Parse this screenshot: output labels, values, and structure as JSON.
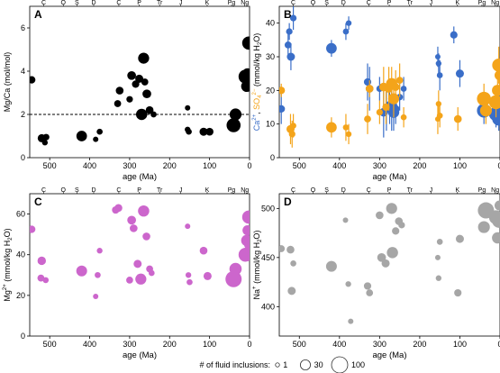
{
  "chart_data": [
    {
      "panel": "A",
      "type": "scatter",
      "xlabel": "age (Ma)",
      "ylabel": "Mg/Ca (mol/mol)",
      "xlim": [
        550,
        0
      ],
      "ylim": [
        0,
        7
      ],
      "xticks": [
        500,
        400,
        300,
        200,
        100,
        0
      ],
      "yticks": [
        0,
        2,
        4,
        6
      ],
      "reference_line": 2,
      "period_labels": [
        "C",
        "O",
        "S",
        "D",
        "C",
        "P",
        "Tr",
        "J",
        "K",
        "Pg",
        "Ng"
      ],
      "marker_color": "#000000",
      "points": [
        {
          "x": 545,
          "y": 3.6,
          "n": 12
        },
        {
          "x": 520,
          "y": 0.9,
          "n": 16
        },
        {
          "x": 512,
          "y": 0.7,
          "n": 5
        },
        {
          "x": 509,
          "y": 0.95,
          "n": 8
        },
        {
          "x": 420,
          "y": 1.0,
          "n": 34
        },
        {
          "x": 385,
          "y": 0.85,
          "n": 4
        },
        {
          "x": 375,
          "y": 1.2,
          "n": 6
        },
        {
          "x": 330,
          "y": 2.5,
          "n": 10
        },
        {
          "x": 325,
          "y": 3.1,
          "n": 14
        },
        {
          "x": 300,
          "y": 2.7,
          "n": 8
        },
        {
          "x": 295,
          "y": 3.8,
          "n": 20
        },
        {
          "x": 285,
          "y": 3.4,
          "n": 12
        },
        {
          "x": 276,
          "y": 3.65,
          "n": 16
        },
        {
          "x": 270,
          "y": 2.0,
          "n": 40
        },
        {
          "x": 265,
          "y": 4.6,
          "n": 38
        },
        {
          "x": 262,
          "y": 3.5,
          "n": 10
        },
        {
          "x": 257,
          "y": 2.95,
          "n": 20
        },
        {
          "x": 250,
          "y": 2.2,
          "n": 14
        },
        {
          "x": 240,
          "y": 2.0,
          "n": 6
        },
        {
          "x": 155,
          "y": 2.3,
          "n": 4
        },
        {
          "x": 155,
          "y": 1.3,
          "n": 5
        },
        {
          "x": 152,
          "y": 1.2,
          "n": 6
        },
        {
          "x": 115,
          "y": 1.2,
          "n": 16
        },
        {
          "x": 100,
          "y": 1.2,
          "n": 14
        },
        {
          "x": 40,
          "y": 1.5,
          "n": 70
        },
        {
          "x": 35,
          "y": 2.0,
          "n": 46
        },
        {
          "x": 10,
          "y": 3.75,
          "n": 70
        },
        {
          "x": 7,
          "y": 3.3,
          "n": 40
        },
        {
          "x": 5,
          "y": 3.9,
          "n": 30
        },
        {
          "x": 2,
          "y": 5.3,
          "n": 60
        }
      ]
    },
    {
      "panel": "B",
      "type": "scatter",
      "xlabel": "age (Ma)",
      "ylabel": "Ca2+, SO42- (mmol/kg H2O)",
      "ylabel_parts": {
        "ca": "Ca",
        "ca_sup": "2+",
        "comma": ",",
        "so": "SO",
        "so_sub": "4",
        "so_sup": "2−",
        "unit": "(mmol/kg H",
        "unit_sub": "2",
        "unit_end": "O)"
      },
      "xlim": [
        550,
        0
      ],
      "ylim": [
        0,
        45
      ],
      "xticks": [
        500,
        400,
        300,
        200,
        100,
        0
      ],
      "yticks": [
        0,
        10,
        20,
        30,
        40
      ],
      "period_labels": [
        "C",
        "O",
        "S",
        "D",
        "C",
        "P",
        "Tr",
        "J",
        "K",
        "Pg",
        "Ng"
      ],
      "series": [
        {
          "name": "Ca2+",
          "color": "#3a6ec8",
          "points": [
            {
              "x": 545,
              "y": 14.5,
              "lo": 10.0,
              "hi": 19.0,
              "n": 12
            },
            {
              "x": 528,
              "y": 33.5,
              "lo": 30.0,
              "hi": 37.0,
              "n": 10
            },
            {
              "x": 525,
              "y": 37.5,
              "lo": 35.0,
              "hi": 40.0,
              "n": 8
            },
            {
              "x": 521,
              "y": 30.0,
              "lo": 26.0,
              "hi": 34.0,
              "n": 16
            },
            {
              "x": 515,
              "y": 41.5,
              "lo": 38.0,
              "hi": 45.0,
              "n": 8
            },
            {
              "x": 420,
              "y": 32.5,
              "lo": 30.0,
              "hi": 35.0,
              "n": 34
            },
            {
              "x": 384,
              "y": 37.5,
              "lo": 35.0,
              "hi": 40.0,
              "n": 6
            },
            {
              "x": 377,
              "y": 40.0,
              "lo": 38.0,
              "hi": 42.0,
              "n": 5
            },
            {
              "x": 330,
              "y": 22.5,
              "lo": 17.0,
              "hi": 28.0,
              "n": 12
            },
            {
              "x": 325,
              "y": 20.5,
              "lo": 14.0,
              "hi": 27.0,
              "n": 14
            },
            {
              "x": 300,
              "y": 20.5,
              "lo": 17.0,
              "hi": 24.0,
              "n": 8
            },
            {
              "x": 290,
              "y": 13.5,
              "lo": 6.0,
              "hi": 21.0,
              "n": 20
            },
            {
              "x": 283,
              "y": 14.5,
              "lo": 8.0,
              "hi": 21.0,
              "n": 14
            },
            {
              "x": 275,
              "y": 15.5,
              "lo": 10.0,
              "hi": 21.0,
              "n": 20
            },
            {
              "x": 270,
              "y": 15.5,
              "lo": 8.0,
              "hi": 23.0,
              "n": 38
            },
            {
              "x": 265,
              "y": 13.5,
              "lo": 8.0,
              "hi": 19.0,
              "n": 40
            },
            {
              "x": 260,
              "y": 14.5,
              "lo": 10.0,
              "hi": 19.0,
              "n": 14
            },
            {
              "x": 250,
              "y": 18.0,
              "lo": 14.0,
              "hi": 22.0,
              "n": 8
            },
            {
              "x": 240,
              "y": 20.5,
              "lo": 17.0,
              "hi": 24.0,
              "n": 6
            },
            {
              "x": 155,
              "y": 30.0,
              "lo": 27.0,
              "hi": 33.0,
              "n": 4
            },
            {
              "x": 153,
              "y": 28.0,
              "lo": 25.0,
              "hi": 31.0,
              "n": 5
            },
            {
              "x": 150,
              "y": 24.5,
              "lo": 20.0,
              "hi": 29.0,
              "n": 6
            },
            {
              "x": 115,
              "y": 36.5,
              "lo": 34.0,
              "hi": 39.0,
              "n": 12
            },
            {
              "x": 100,
              "y": 25.0,
              "lo": 21.0,
              "hi": 29.0,
              "n": 16
            },
            {
              "x": 40,
              "y": 14.0,
              "lo": 10.0,
              "hi": 18.0,
              "n": 70
            },
            {
              "x": 10,
              "y": 13.0,
              "lo": 9.0,
              "hi": 17.0,
              "n": 70
            },
            {
              "x": 6,
              "y": 17.0,
              "lo": 13.0,
              "hi": 21.0,
              "n": 40
            },
            {
              "x": 3,
              "y": 11.5,
              "lo": 8.0,
              "hi": 15.0,
              "n": 60
            },
            {
              "x": 1,
              "y": 14.0,
              "lo": 10.0,
              "hi": 18.0,
              "n": 30
            }
          ]
        },
        {
          "name": "SO42-",
          "color": "#f4a41a",
          "points": [
            {
              "x": 545,
              "y": 20.0,
              "lo": 18.0,
              "hi": 22.0,
              "n": 12
            },
            {
              "x": 522,
              "y": 8.5,
              "lo": 4.0,
              "hi": 13.0,
              "n": 16
            },
            {
              "x": 518,
              "y": 7.0,
              "lo": 3.0,
              "hi": 11.0,
              "n": 8
            },
            {
              "x": 515,
              "y": 9.5,
              "lo": 6.0,
              "hi": 13.0,
              "n": 6
            },
            {
              "x": 420,
              "y": 9.0,
              "lo": 6.0,
              "hi": 12.0,
              "n": 34
            },
            {
              "x": 384,
              "y": 9.0,
              "lo": 5.0,
              "hi": 13.0,
              "n": 6
            },
            {
              "x": 377,
              "y": 7.0,
              "lo": 4.0,
              "hi": 10.0,
              "n": 5
            },
            {
              "x": 330,
              "y": 11.5,
              "lo": 7.0,
              "hi": 16.0,
              "n": 10
            },
            {
              "x": 325,
              "y": 20.5,
              "lo": 18.0,
              "hi": 23.0,
              "n": 14
            },
            {
              "x": 300,
              "y": 13.5,
              "lo": 10.0,
              "hi": 17.0,
              "n": 8
            },
            {
              "x": 290,
              "y": 21.0,
              "lo": 15.0,
              "hi": 27.0,
              "n": 20
            },
            {
              "x": 284,
              "y": 15.0,
              "lo": 10.0,
              "hi": 20.0,
              "n": 12
            },
            {
              "x": 277,
              "y": 20.5,
              "lo": 14.0,
              "hi": 27.0,
              "n": 16
            },
            {
              "x": 270,
              "y": 22.0,
              "lo": 17.0,
              "hi": 27.0,
              "n": 40
            },
            {
              "x": 265,
              "y": 17.5,
              "lo": 12.0,
              "hi": 23.0,
              "n": 38
            },
            {
              "x": 260,
              "y": 21.0,
              "lo": 16.0,
              "hi": 26.0,
              "n": 14
            },
            {
              "x": 250,
              "y": 23.0,
              "lo": 18.0,
              "hi": 28.0,
              "n": 10
            },
            {
              "x": 240,
              "y": 12.0,
              "lo": 9.0,
              "hi": 15.0,
              "n": 6
            },
            {
              "x": 155,
              "y": 11.5,
              "lo": 7.0,
              "hi": 16.0,
              "n": 4
            },
            {
              "x": 153,
              "y": 16.0,
              "lo": 12.0,
              "hi": 20.0,
              "n": 5
            },
            {
              "x": 150,
              "y": 12.5,
              "lo": 9.0,
              "hi": 16.0,
              "n": 6
            },
            {
              "x": 105,
              "y": 11.5,
              "lo": 8.0,
              "hi": 15.0,
              "n": 14
            },
            {
              "x": 40,
              "y": 17.5,
              "lo": 13.0,
              "hi": 22.0,
              "n": 70
            },
            {
              "x": 35,
              "y": 14.0,
              "lo": 10.0,
              "hi": 18.0,
              "n": 46
            },
            {
              "x": 10,
              "y": 16.5,
              "lo": 12.0,
              "hi": 21.0,
              "n": 70
            },
            {
              "x": 6,
              "y": 20.0,
              "lo": 15.0,
              "hi": 25.0,
              "n": 40
            },
            {
              "x": 3,
              "y": 27.5,
              "lo": 22.0,
              "hi": 33.0,
              "n": 60
            },
            {
              "x": 1,
              "y": 24.5,
              "lo": 20.0,
              "hi": 29.0,
              "n": 30
            }
          ]
        }
      ]
    },
    {
      "panel": "C",
      "type": "scatter",
      "xlabel": "age (Ma)",
      "ylabel": "Mg2+ (mmol/kg H2O)",
      "ylabel_parts": {
        "base": "Mg",
        "sup": "2+",
        "unit": "(mmol/kg H",
        "unit_sub": "2",
        "unit_end": "O)"
      },
      "xlim": [
        550,
        0
      ],
      "ylim": [
        0,
        70
      ],
      "xticks": [
        500,
        400,
        300,
        200,
        100,
        0
      ],
      "yticks": [
        0,
        20,
        40,
        60
      ],
      "period_labels": [
        "C",
        "O",
        "S",
        "D",
        "C",
        "P",
        "Tr",
        "J",
        "K",
        "Pg",
        "Ng"
      ],
      "marker_color": "#cc66cc",
      "points": [
        {
          "x": 545,
          "y": 52.5,
          "n": 12
        },
        {
          "x": 520,
          "y": 37.0,
          "n": 18
        },
        {
          "x": 522,
          "y": 28.5,
          "n": 10
        },
        {
          "x": 510,
          "y": 27.5,
          "n": 6
        },
        {
          "x": 420,
          "y": 32.0,
          "n": 36
        },
        {
          "x": 385,
          "y": 19.5,
          "n": 4
        },
        {
          "x": 380,
          "y": 30.0,
          "n": 6
        },
        {
          "x": 375,
          "y": 42.0,
          "n": 5
        },
        {
          "x": 335,
          "y": 62.0,
          "n": 12
        },
        {
          "x": 328,
          "y": 63.0,
          "n": 14
        },
        {
          "x": 300,
          "y": 27.5,
          "n": 10
        },
        {
          "x": 295,
          "y": 57.0,
          "n": 20
        },
        {
          "x": 290,
          "y": 53.0,
          "n": 14
        },
        {
          "x": 280,
          "y": 35.5,
          "n": 16
        },
        {
          "x": 272,
          "y": 28.0,
          "n": 38
        },
        {
          "x": 265,
          "y": 61.5,
          "n": 40
        },
        {
          "x": 258,
          "y": 49.0,
          "n": 14
        },
        {
          "x": 250,
          "y": 33.0,
          "n": 10
        },
        {
          "x": 245,
          "y": 31.0,
          "n": 6
        },
        {
          "x": 155,
          "y": 54.0,
          "n": 4
        },
        {
          "x": 153,
          "y": 30.0,
          "n": 5
        },
        {
          "x": 150,
          "y": 26.5,
          "n": 6
        },
        {
          "x": 115,
          "y": 42.0,
          "n": 14
        },
        {
          "x": 105,
          "y": 29.5,
          "n": 16
        },
        {
          "x": 40,
          "y": 28.0,
          "n": 100
        },
        {
          "x": 35,
          "y": 33.0,
          "n": 50
        },
        {
          "x": 10,
          "y": 40.0,
          "n": 70
        },
        {
          "x": 7,
          "y": 47.0,
          "n": 40
        },
        {
          "x": 5,
          "y": 52.0,
          "n": 30
        },
        {
          "x": 2,
          "y": 58.5,
          "n": 60
        },
        {
          "x": 1,
          "y": 45.0,
          "n": 30
        }
      ]
    },
    {
      "panel": "D",
      "type": "scatter",
      "xlabel": "age (Ma)",
      "ylabel": "Na+ (mmol/kg H2O)",
      "ylabel_parts": {
        "base": "Na",
        "sup": "+",
        "unit": "(mmol/kg H",
        "unit_sub": "2",
        "unit_end": "O)"
      },
      "xlim": [
        550,
        0
      ],
      "ylim": [
        370,
        515
      ],
      "xticks": [
        500,
        400,
        300,
        200,
        100,
        0
      ],
      "yticks": [
        400,
        450,
        500
      ],
      "period_labels": [
        "C",
        "O",
        "S",
        "D",
        "C",
        "P",
        "Tr",
        "J",
        "K",
        "Pg",
        "Ng"
      ],
      "marker_color": "#a6a6a6",
      "points": [
        {
          "x": 545,
          "y": 459,
          "n": 10
        },
        {
          "x": 522,
          "y": 458,
          "n": 14
        },
        {
          "x": 519,
          "y": 416,
          "n": 16
        },
        {
          "x": 515,
          "y": 444,
          "n": 6
        },
        {
          "x": 420,
          "y": 441,
          "n": 36
        },
        {
          "x": 385,
          "y": 488,
          "n": 4
        },
        {
          "x": 378,
          "y": 423,
          "n": 5
        },
        {
          "x": 372,
          "y": 385,
          "n": 4
        },
        {
          "x": 330,
          "y": 421,
          "n": 12
        },
        {
          "x": 325,
          "y": 414,
          "n": 10
        },
        {
          "x": 300,
          "y": 493,
          "n": 14
        },
        {
          "x": 295,
          "y": 450,
          "n": 20
        },
        {
          "x": 285,
          "y": 444,
          "n": 16
        },
        {
          "x": 270,
          "y": 500,
          "n": 38
        },
        {
          "x": 268,
          "y": 455,
          "n": 40
        },
        {
          "x": 260,
          "y": 477,
          "n": 12
        },
        {
          "x": 252,
          "y": 487,
          "n": 14
        },
        {
          "x": 245,
          "y": 483,
          "n": 8
        },
        {
          "x": 155,
          "y": 450,
          "n": 4
        },
        {
          "x": 153,
          "y": 429,
          "n": 5
        },
        {
          "x": 150,
          "y": 466,
          "n": 6
        },
        {
          "x": 105,
          "y": 414,
          "n": 12
        },
        {
          "x": 100,
          "y": 469,
          "n": 16
        },
        {
          "x": 40,
          "y": 481,
          "n": 46
        },
        {
          "x": 35,
          "y": 498,
          "n": 100
        },
        {
          "x": 10,
          "y": 491,
          "n": 70
        },
        {
          "x": 6,
          "y": 470,
          "n": 40
        },
        {
          "x": 3,
          "y": 487,
          "n": 60
        },
        {
          "x": 1,
          "y": 503,
          "n": 30
        }
      ]
    }
  ],
  "legend": {
    "title": "# of fluid inclusions:",
    "items": [
      {
        "label": "1",
        "n": 1
      },
      {
        "label": "30",
        "n": 30
      },
      {
        "label": "100",
        "n": 100
      }
    ]
  }
}
